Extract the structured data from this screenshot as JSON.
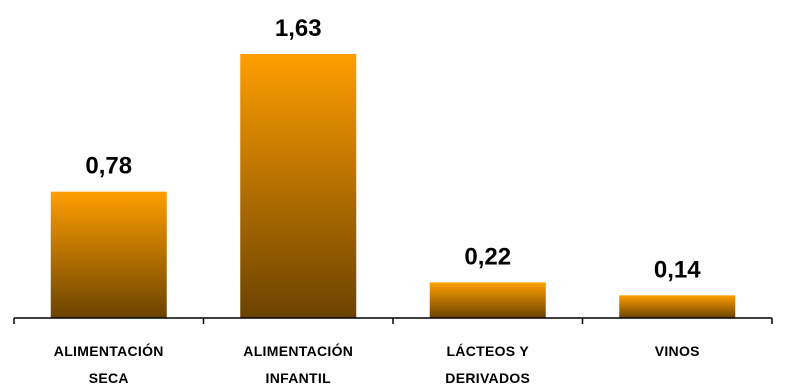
{
  "chart_data": {
    "type": "bar",
    "title": "",
    "xlabel": "",
    "ylabel": "",
    "categories": [
      [
        "ALIMENTACIÓN",
        "SECA"
      ],
      [
        "ALIMENTACIÓN",
        "INFANTIL"
      ],
      [
        "LÁCTEOS Y",
        "DERIVADOS"
      ],
      [
        "VINOS"
      ]
    ],
    "values": [
      0.78,
      1.63,
      0.22,
      0.14
    ],
    "value_labels": [
      "0,78",
      "1,63",
      "0,22",
      "0,14"
    ],
    "ylim": [
      0,
      1.8
    ],
    "grid": false,
    "legend": "none",
    "colors": {
      "bar_top": "#FF9E00",
      "bar_bottom": "#6B4300",
      "axis": "#000000"
    }
  }
}
